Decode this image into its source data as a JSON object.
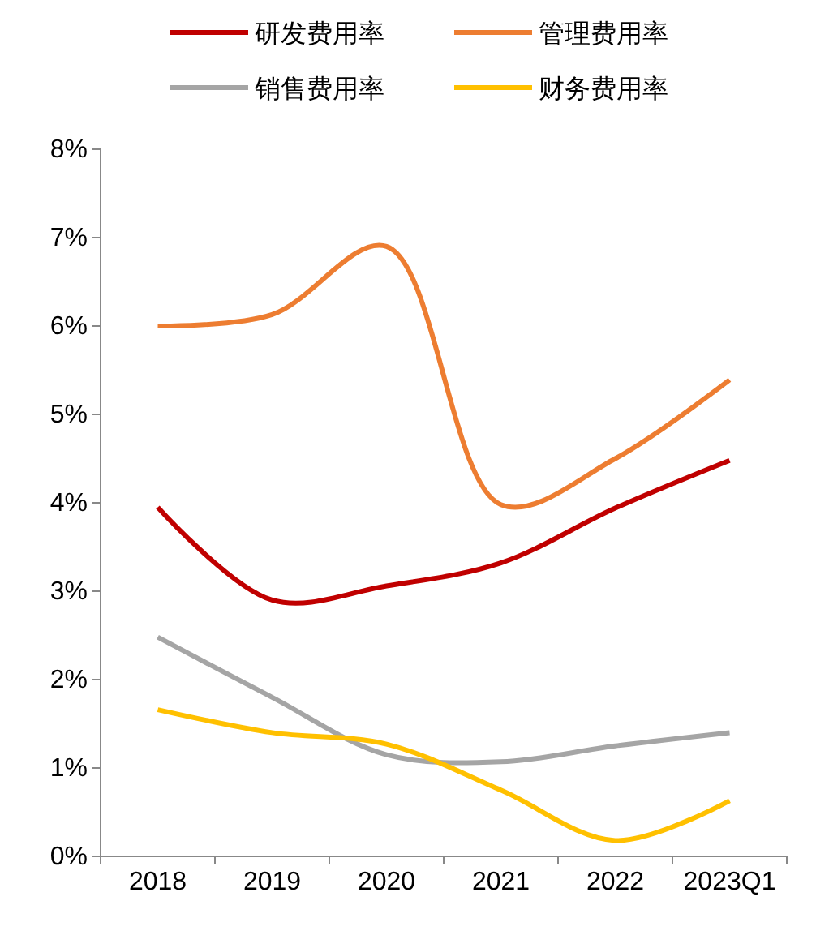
{
  "chart_data": {
    "type": "line",
    "categories": [
      "2018",
      "2019",
      "2020",
      "2021",
      "2022",
      "2023Q1"
    ],
    "series": [
      {
        "name": "研发费用率",
        "color": "#c00000",
        "values": [
          3.95,
          2.9,
          3.06,
          3.32,
          3.94,
          4.48
        ]
      },
      {
        "name": "管理费用率",
        "color": "#ed7d31",
        "values": [
          6.0,
          6.13,
          6.9,
          3.98,
          4.5,
          5.39
        ]
      },
      {
        "name": "销售费用率",
        "color": "#a5a5a5",
        "values": [
          2.48,
          1.8,
          1.15,
          1.07,
          1.25,
          1.4
        ]
      },
      {
        "name": "财务费用率",
        "color": "#ffc000",
        "values": [
          1.66,
          1.4,
          1.27,
          0.75,
          0.18,
          0.63
        ]
      }
    ],
    "ylim": [
      0,
      8
    ],
    "yticks": [
      {
        "value": 0,
        "label": "0%"
      },
      {
        "value": 1,
        "label": "1%"
      },
      {
        "value": 2,
        "label": "2%"
      },
      {
        "value": 3,
        "label": "3%"
      },
      {
        "value": 4,
        "label": "4%"
      },
      {
        "value": 5,
        "label": "5%"
      },
      {
        "value": 6,
        "label": "6%"
      },
      {
        "value": 7,
        "label": "7%"
      },
      {
        "value": 8,
        "label": "8%"
      }
    ],
    "grid": false,
    "legend": "top",
    "marker": "none",
    "line_style": "solid"
  }
}
